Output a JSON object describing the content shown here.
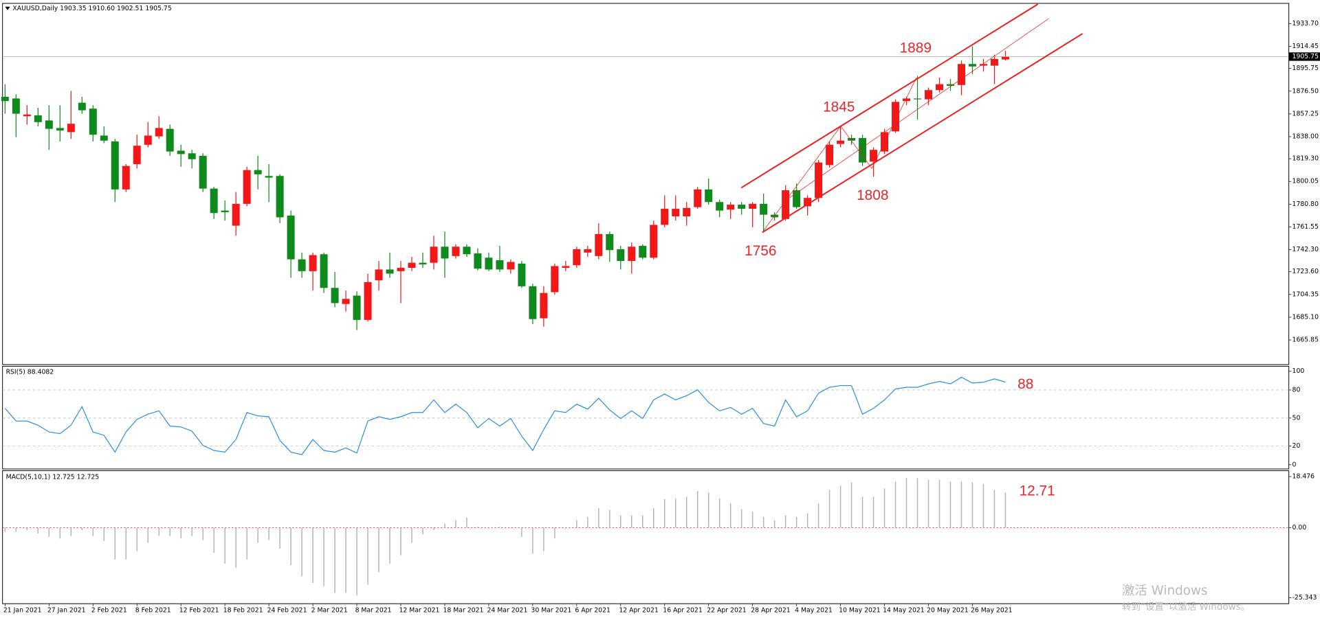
{
  "chart_data": [
    {
      "type": "candlestick",
      "title": "XAUUSD,Daily  1903.35 1910.60 1902.51 1905.75",
      "up_color": "#f21818",
      "down_color": "#0f8a1c",
      "grid": false,
      "ylim": [
        1645.7,
        1948.7
      ],
      "yticks": [
        {
          "value": 1933.7,
          "label": "1933.70"
        },
        {
          "value": 1914.45,
          "label": "1914.45"
        },
        {
          "value": 1895.75,
          "label": "1895.75"
        },
        {
          "value": 1876.5,
          "label": "1876.50"
        },
        {
          "value": 1857.25,
          "label": "1857.25"
        },
        {
          "value": 1838,
          "label": "1838.00"
        },
        {
          "value": 1819.3,
          "label": "1819.30"
        },
        {
          "value": 1800.05,
          "label": "1800.05"
        },
        {
          "value": 1780.8,
          "label": "1780.80"
        },
        {
          "value": 1761.55,
          "label": "1761.55"
        },
        {
          "value": 1742.3,
          "label": "1742.30"
        },
        {
          "value": 1723.6,
          "label": "1723.60"
        },
        {
          "value": 1704.35,
          "label": "1704.35"
        },
        {
          "value": 1685.1,
          "label": "1685.10"
        },
        {
          "value": 1665.85,
          "label": "1665.85"
        }
      ],
      "price_line": {
        "value": 1905.75,
        "label": "1905.75"
      },
      "annotations": [
        "1889",
        "1845",
        "1808",
        "1756"
      ],
      "open": [
        1871.7,
        1870.3,
        1855.3,
        1856.0,
        1851.7,
        1845.3,
        1841.8,
        1866.7,
        1861.7,
        1838.9,
        1833.9,
        1793.3,
        1814.7,
        1831.1,
        1838.2,
        1844.6,
        1826.1,
        1823.9,
        1821.8,
        1794.0,
        1775.4,
        1762.6,
        1781.1,
        1809.7,
        1804.7,
        1804.7,
        1771.2,
        1734.1,
        1724.1,
        1738.4,
        1709.9,
        1696.3,
        1703.4,
        1682.8,
        1716.3,
        1725.5,
        1724.1,
        1726.9,
        1731.2,
        1731.2,
        1744.8,
        1736.9,
        1744.8,
        1739.1,
        1735.5,
        1733.4,
        1725.5,
        1730.5,
        1711.3,
        1684.2,
        1706.3,
        1726.9,
        1729.1,
        1739.8,
        1736.9,
        1755.5,
        1742.7,
        1732.7,
        1745.5,
        1735.5,
        1763.3,
        1770.5,
        1770.5,
        1778.3,
        1793.3,
        1782.6,
        1776.2,
        1780.4,
        1776.9,
        1781.1,
        1771.9,
        1768.3,
        1792.6,
        1779.0,
        1786.1,
        1813.9,
        1831.8,
        1836.8,
        1836.8,
        1816.8,
        1825.4,
        1842.5,
        1868.1,
        1870.3,
        1869.6,
        1877.4,
        1882.4,
        1881.7,
        1899.5,
        1898.1,
        1898.1,
        1903.35
      ],
      "high": [
        1882.4,
        1873.8,
        1864.6,
        1862.4,
        1864.6,
        1864.6,
        1876.7,
        1871.7,
        1864.6,
        1846.7,
        1836.1,
        1814.7,
        1839.6,
        1850.3,
        1855.3,
        1848.2,
        1831.1,
        1826.8,
        1823.9,
        1795.4,
        1784.0,
        1791.1,
        1812.5,
        1821.8,
        1814.7,
        1806.1,
        1775.4,
        1739.8,
        1739.8,
        1739.8,
        1723.4,
        1707.7,
        1707.0,
        1722.0,
        1732.7,
        1739.8,
        1732.7,
        1736.2,
        1739.8,
        1754.1,
        1757.6,
        1746.9,
        1746.9,
        1743.4,
        1739.8,
        1745.5,
        1734.1,
        1732.7,
        1713.4,
        1711.3,
        1730.5,
        1732.7,
        1744.8,
        1745.5,
        1764.7,
        1757.6,
        1745.5,
        1748.4,
        1746.9,
        1766.9,
        1788.3,
        1788.3,
        1782.6,
        1795.4,
        1802.5,
        1784.7,
        1782.6,
        1782.6,
        1782.6,
        1789.7,
        1774.0,
        1796.9,
        1798.3,
        1788.3,
        1818.2,
        1833.9,
        1846.7,
        1839.6,
        1839.6,
        1828.9,
        1844.6,
        1869.6,
        1871.7,
        1889.5,
        1879.5,
        1888.1,
        1886.7,
        1902.4,
        1914.5,
        1903.8,
        1907.4,
        1910.6
      ],
      "low": [
        1857.4,
        1837.5,
        1848.2,
        1846.7,
        1826.8,
        1833.9,
        1836.1,
        1857.4,
        1833.9,
        1832.5,
        1782.6,
        1791.1,
        1811.1,
        1828.9,
        1836.1,
        1821.8,
        1812.5,
        1811.1,
        1791.1,
        1768.3,
        1766.9,
        1754.1,
        1779.0,
        1793.3,
        1782.6,
        1764.7,
        1718.4,
        1718.4,
        1707.7,
        1705.6,
        1693.5,
        1689.9,
        1674.2,
        1681.3,
        1707.7,
        1718.4,
        1697.0,
        1724.1,
        1726.9,
        1725.5,
        1718.4,
        1734.8,
        1736.2,
        1724.8,
        1724.1,
        1723.4,
        1722.0,
        1709.9,
        1679.2,
        1677.1,
        1704.2,
        1724.1,
        1726.9,
        1736.2,
        1734.1,
        1731.9,
        1725.5,
        1722.0,
        1734.1,
        1734.1,
        1761.2,
        1766.9,
        1762.6,
        1776.9,
        1780.4,
        1769.7,
        1768.3,
        1771.9,
        1761.2,
        1757.6,
        1766.9,
        1766.9,
        1776.9,
        1771.2,
        1782.6,
        1811.8,
        1828.9,
        1831.1,
        1813.2,
        1804.0,
        1823.2,
        1841.1,
        1864.6,
        1852.4,
        1864.6,
        1875.3,
        1876.7,
        1873.1,
        1891.0,
        1893.1,
        1882.4,
        1902.51
      ],
      "close": [
        1868.1,
        1857.4,
        1856.7,
        1850.3,
        1844.6,
        1843.2,
        1848.9,
        1860.3,
        1839.6,
        1834.6,
        1793.3,
        1813.2,
        1830.3,
        1838.9,
        1845.3,
        1825.4,
        1823.2,
        1818.9,
        1794.0,
        1773.3,
        1774.0,
        1781.1,
        1809.7,
        1806.1,
        1803.3,
        1769.7,
        1734.1,
        1724.1,
        1737.7,
        1709.9,
        1697.0,
        1700.6,
        1682.8,
        1714.8,
        1725.5,
        1722.0,
        1726.9,
        1731.2,
        1729.8,
        1744.8,
        1734.8,
        1744.8,
        1738.4,
        1726.2,
        1725.5,
        1725.5,
        1731.9,
        1711.3,
        1683.5,
        1705.6,
        1728.4,
        1728.4,
        1742.7,
        1742.7,
        1755.5,
        1741.9,
        1732.7,
        1744.8,
        1735.5,
        1763.3,
        1776.9,
        1776.9,
        1777.6,
        1793.3,
        1782.6,
        1775.4,
        1780.4,
        1776.9,
        1781.1,
        1771.9,
        1769.7,
        1792.6,
        1778.3,
        1786.1,
        1816.1,
        1831.1,
        1834.6,
        1834.6,
        1816.1,
        1826.8,
        1841.8,
        1867.4,
        1870.3,
        1869.6,
        1877.4,
        1882.4,
        1881.0,
        1899.5,
        1897.4,
        1899.5,
        1903.8,
        1905.75
      ]
    },
    {
      "type": "line",
      "title": "RSI(5) 88.4082",
      "color": "#2b8fe6",
      "grid": true,
      "ylim": [
        0,
        100
      ],
      "yticks": [
        100,
        80,
        50,
        20,
        0
      ],
      "annotations": [
        "88"
      ],
      "values": [
        60.4,
        46.8,
        46.8,
        42.3,
        35.1,
        33.3,
        42.3,
        62.2,
        35.1,
        31.5,
        13.5,
        35.1,
        48.6,
        54.1,
        57.7,
        41.4,
        40.5,
        36.0,
        20.7,
        15.3,
        13.5,
        27.0,
        55.9,
        52.3,
        51.4,
        26.1,
        13.5,
        10.8,
        27.0,
        15.3,
        13.5,
        18.0,
        12.6,
        46.8,
        51.4,
        48.6,
        51.4,
        55.9,
        55.9,
        69.4,
        55.9,
        64.9,
        55.9,
        39.6,
        49.5,
        41.4,
        49.5,
        30.6,
        15.3,
        37.8,
        57.7,
        55.9,
        64.9,
        59.5,
        71.2,
        58.6,
        49.5,
        57.7,
        49.5,
        69.4,
        75.7,
        69.4,
        73.9,
        80.2,
        66.7,
        57.7,
        61.3,
        54.1,
        60.4,
        44.1,
        41.4,
        69.4,
        51.4,
        57.7,
        76.6,
        82.9,
        84.7,
        84.7,
        54.1,
        60.4,
        69.4,
        81.1,
        82.9,
        82.9,
        86.5,
        89.2,
        86.5,
        93.7,
        87.4,
        88.3,
        91.9,
        88.4
      ]
    },
    {
      "type": "bar",
      "title": "MACD(5,10,1) 12.725 12.725",
      "color": "#b4b4b4",
      "grid": true,
      "ylim": [
        -25.343,
        18.476
      ],
      "yticks": [
        18.476,
        {
          "value": 0,
          "label": "0.00"
        },
        -25.343
      ],
      "annotations": [
        "12.71"
      ],
      "categories": [
        "21 Jan 2021",
        null,
        null,
        null,
        "27 Jan 2021",
        null,
        null,
        null,
        "2 Feb 2021",
        null,
        null,
        null,
        "8 Feb 2021",
        null,
        null,
        null,
        "12 Feb 2021",
        null,
        null,
        null,
        "18 Feb 2021",
        null,
        null,
        null,
        "24 Feb 2021",
        null,
        null,
        null,
        "2 Mar 2021",
        null,
        null,
        null,
        "8 Mar 2021",
        null,
        null,
        null,
        "12 Mar 2021",
        null,
        null,
        null,
        "18 Mar 2021",
        null,
        null,
        null,
        "24 Mar 2021",
        null,
        null,
        null,
        "30 Mar 2021",
        null,
        null,
        null,
        "6 Apr 2021",
        null,
        null,
        null,
        "12 Apr 2021",
        null,
        null,
        null,
        "16 Apr 2021",
        null,
        null,
        null,
        "22 Apr 2021",
        null,
        null,
        null,
        "28 Apr 2021",
        null,
        null,
        null,
        "4 May 2021",
        null,
        null,
        null,
        "10 May 2021",
        null,
        null,
        null,
        "14 May 2021",
        null,
        null,
        null,
        "20 May 2021",
        null,
        null,
        null,
        "26 May 2021",
        null,
        null,
        null
      ],
      "values": [
        -1.5,
        -1.5,
        -0.9,
        -2.1,
        -3.3,
        -3.9,
        -3.0,
        -0.9,
        -3.0,
        -4.8,
        -11.5,
        -11.5,
        -8.5,
        -5.5,
        -3.0,
        -3.0,
        -3.9,
        -3.0,
        -4.5,
        -9.1,
        -13.0,
        -14.5,
        -11.5,
        -5.5,
        -4.5,
        -7.6,
        -13.6,
        -17.6,
        -20.0,
        -21.2,
        -23.6,
        -23.6,
        -24.5,
        -20.6,
        -16.1,
        -13.0,
        -10.0,
        -5.5,
        -2.4,
        -0.9,
        1.5,
        2.7,
        3.6,
        0.3,
        -0.3,
        0.3,
        -0.3,
        -3.3,
        -9.4,
        -8.5,
        -3.9,
        -0.3,
        2.7,
        3.9,
        7.0,
        6.4,
        4.5,
        4.5,
        4.5,
        7.0,
        10.3,
        10.6,
        11.2,
        13.3,
        12.7,
        10.6,
        8.8,
        6.7,
        5.8,
        3.9,
        2.7,
        4.5,
        3.9,
        5.2,
        8.8,
        13.6,
        15.2,
        16.4,
        11.2,
        11.2,
        14.2,
        16.7,
        17.9,
        17.9,
        17.3,
        17.3,
        16.7,
        16.7,
        16.4,
        15.8,
        13.6,
        12.725
      ]
    }
  ],
  "watermark": [
    "激活 Windows",
    "转到“设置”以激活 Windows。"
  ]
}
